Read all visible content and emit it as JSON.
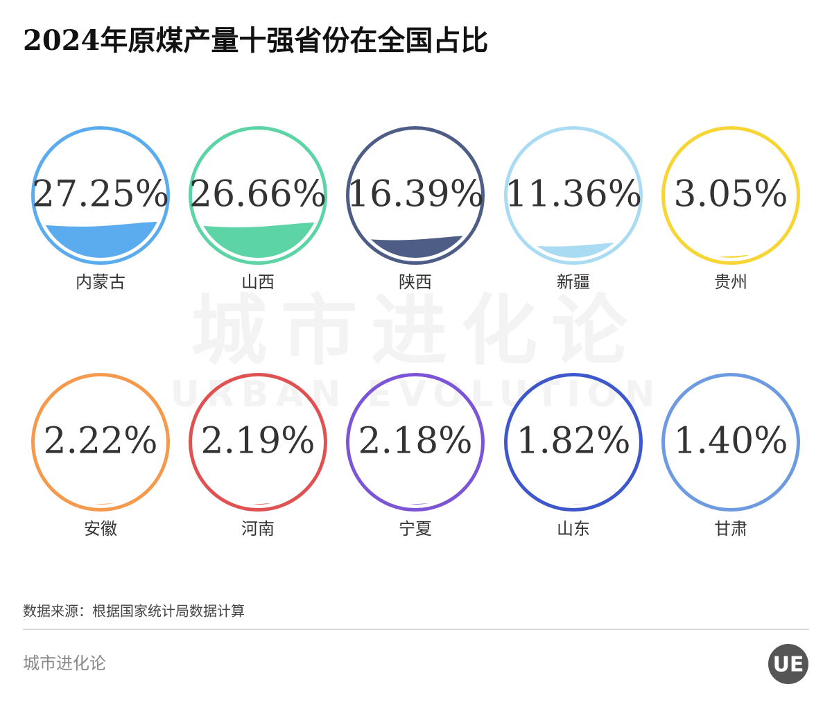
{
  "chart_data": {
    "type": "liquidfill",
    "title": "2024年原煤产量十强省份在全国占比",
    "categories": [
      "内蒙古",
      "山西",
      "陕西",
      "新疆",
      "贵州",
      "安徽",
      "河南",
      "宁夏",
      "山东",
      "甘肃"
    ],
    "values": [
      27.25,
      26.66,
      16.39,
      11.36,
      3.05,
      2.22,
      2.19,
      2.18,
      1.82,
      1.4
    ],
    "value_labels": [
      "27.25%",
      "26.66%",
      "16.39%",
      "11.36%",
      "3.05%",
      "2.22%",
      "2.19%",
      "2.18%",
      "1.82%",
      "1.40%"
    ],
    "colors": [
      "#5aacef",
      "#5dd4a5",
      "#4d5d85",
      "#a9dcf3",
      "#f7d535",
      "#f59a4c",
      "#e05252",
      "#7b55d6",
      "#3e58cc",
      "#6e9ae0"
    ],
    "ylim": [
      0,
      100
    ]
  },
  "watermark": {
    "cn": "城市进化论",
    "en": "URBAN EVOLUTION"
  },
  "footer": {
    "source": "数据来源：根据国家统计局数据计算",
    "brand": "城市进化论",
    "logo": "UE"
  }
}
